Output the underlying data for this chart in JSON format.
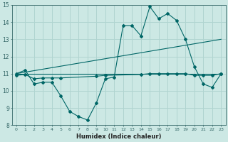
{
  "xlabel": "Humidex (Indice chaleur)",
  "ylabel": "",
  "background_color": "#cce8e4",
  "grid_color": "#b0d4d0",
  "line_color": "#006666",
  "xlim": [
    -0.5,
    23.5
  ],
  "ylim": [
    8,
    15
  ],
  "xticks": [
    0,
    1,
    2,
    3,
    4,
    5,
    6,
    7,
    8,
    9,
    10,
    11,
    12,
    13,
    14,
    15,
    16,
    17,
    18,
    19,
    20,
    21,
    22,
    23
  ],
  "yticks": [
    8,
    9,
    10,
    11,
    12,
    13,
    14,
    15
  ],
  "series": {
    "line1_x": [
      0,
      1,
      2,
      3,
      4,
      5,
      6,
      7,
      8,
      9,
      10,
      11,
      12,
      13,
      14,
      15,
      16,
      17,
      18,
      19,
      20,
      21,
      22,
      23
    ],
    "line1_y": [
      11.0,
      11.2,
      10.4,
      10.5,
      10.5,
      9.7,
      8.8,
      8.5,
      8.3,
      9.3,
      10.7,
      10.8,
      13.8,
      13.8,
      13.2,
      14.9,
      14.2,
      14.5,
      14.1,
      13.0,
      11.4,
      10.4,
      10.2,
      11.0
    ],
    "line2_x": [
      0,
      23
    ],
    "line2_y": [
      11.0,
      11.0
    ],
    "line3_x": [
      0,
      23
    ],
    "line3_y": [
      11.0,
      13.0
    ],
    "line4_x": [
      0,
      1,
      2,
      3,
      4,
      5,
      9,
      10,
      14,
      15,
      16,
      17,
      18,
      19,
      20,
      21,
      22,
      23
    ],
    "line4_y": [
      10.9,
      10.95,
      10.7,
      10.75,
      10.75,
      10.75,
      10.85,
      10.9,
      10.95,
      11.0,
      11.0,
      11.0,
      11.0,
      11.0,
      10.9,
      10.9,
      10.9,
      11.0
    ]
  }
}
